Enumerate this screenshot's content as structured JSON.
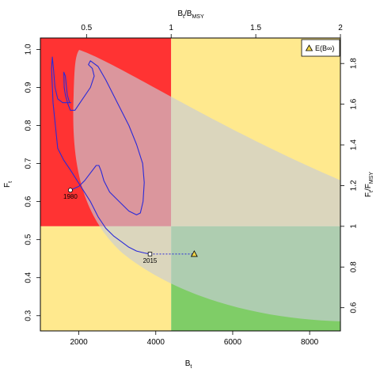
{
  "chart_data": {
    "type": "line",
    "xlabel": "B",
    "xlabel_sub": "t",
    "ylabel": "F",
    "ylabel_sub": "t",
    "top_axis_label": {
      "base": "B",
      "sub1": "t",
      "sep": "/",
      "base2": "B",
      "sub2": "MSY"
    },
    "right_axis_label": {
      "base": "F",
      "sub1": "t",
      "sep": "/",
      "base2": "F",
      "sub2": "MSY"
    },
    "xlim": [
      1000,
      8800
    ],
    "ylim": [
      0.26,
      1.03
    ],
    "x_ticks": [
      2000,
      4000,
      6000,
      8000
    ],
    "x_tick_labels": [
      "2000",
      "4000",
      "6000",
      "8000"
    ],
    "y_ticks": [
      0.3,
      0.4,
      0.5,
      0.6,
      0.7,
      0.8,
      0.9,
      1.0
    ],
    "y_tick_labels": [
      "0.3",
      "0.4",
      "0.5",
      "0.6",
      "0.7",
      "0.8",
      "0.9",
      "1.0"
    ],
    "top_ticks": [
      0.5,
      1,
      1.5,
      2
    ],
    "top_tick_labels": [
      "0.5",
      "1",
      "1.5",
      "2"
    ],
    "right_ticks": [
      0.6,
      0.8,
      1,
      1.2,
      1.4,
      1.6,
      1.8
    ],
    "right_tick_labels": [
      "0.6",
      "0.8",
      "1",
      "1.2",
      "1.4",
      "1.6",
      "1.8"
    ],
    "bmsy": 4400,
    "fmsy": 0.535,
    "quadrants": {
      "red": "#ff3333",
      "yellow": "#ffe98e",
      "green": "#7fcd67"
    },
    "trajectory": {
      "color": "#2a2ad8",
      "x": [
        1780,
        2000,
        2150,
        2300,
        2450,
        2520,
        2580,
        2650,
        2800,
        3050,
        3300,
        3500,
        3600,
        3670,
        3700,
        3660,
        3500,
        3300,
        3000,
        2700,
        2500,
        2300,
        2250,
        2350,
        2400,
        2300,
        2100,
        1900,
        1780,
        1720,
        1650,
        1620,
        1610,
        1650,
        1700,
        1760,
        1790,
        1780,
        1700,
        1580,
        1450,
        1380,
        1340,
        1310,
        1290,
        1330,
        1450,
        1600,
        1800,
        2050,
        2300,
        2500,
        2700,
        2900,
        3100,
        3300,
        3500,
        3700,
        3850
      ],
      "y": [
        0.63,
        0.64,
        0.655,
        0.675,
        0.695,
        0.695,
        0.68,
        0.655,
        0.625,
        0.6,
        0.575,
        0.565,
        0.57,
        0.6,
        0.65,
        0.7,
        0.75,
        0.8,
        0.86,
        0.92,
        0.955,
        0.97,
        0.96,
        0.95,
        0.93,
        0.9,
        0.87,
        0.84,
        0.84,
        0.855,
        0.88,
        0.9,
        0.94,
        0.93,
        0.88,
        0.86,
        0.86,
        0.86,
        0.86,
        0.86,
        0.87,
        0.9,
        0.95,
        0.98,
        0.95,
        0.86,
        0.74,
        0.71,
        0.68,
        0.64,
        0.6,
        0.56,
        0.53,
        0.51,
        0.495,
        0.48,
        0.47,
        0.465,
        0.462
      ]
    },
    "start_point": {
      "x": 1780,
      "y": 0.63,
      "label": "1980"
    },
    "end_point": {
      "x": 3850,
      "y": 0.462,
      "label": "2015"
    },
    "equilibrium_point": {
      "x": 5000,
      "y": 0.462
    },
    "ellipse_fill": "rgba(200,205,215,0.65)",
    "legend": {
      "placement": "top-right",
      "label": "E(B∞)"
    }
  }
}
